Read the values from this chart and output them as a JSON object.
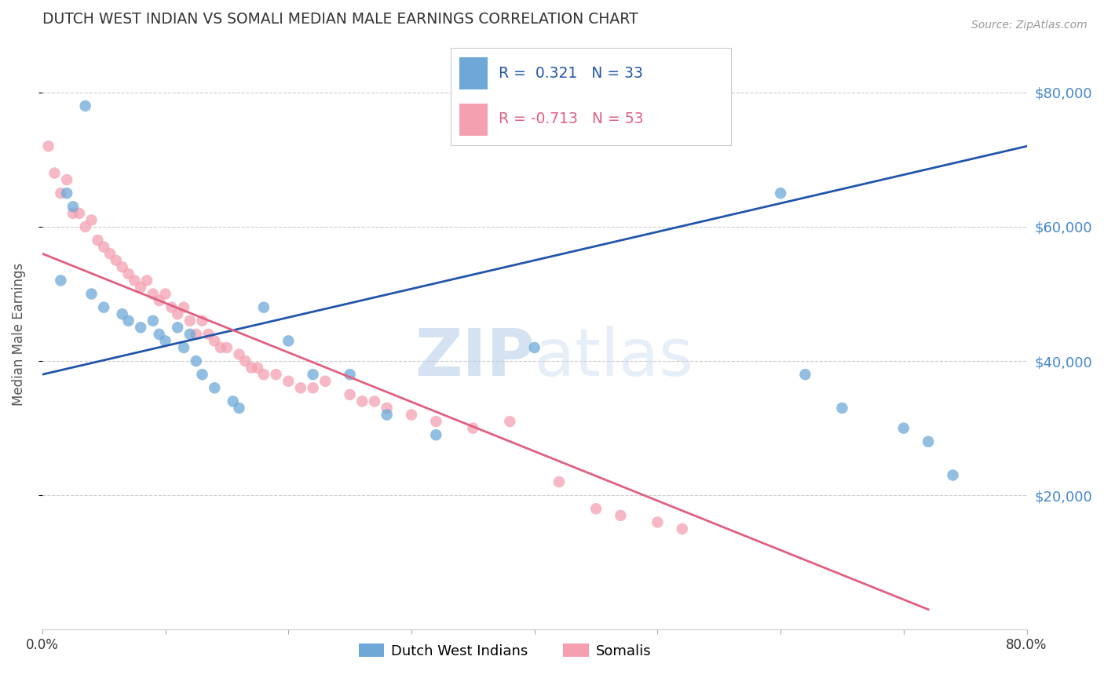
{
  "title": "DUTCH WEST INDIAN VS SOMALI MEDIAN MALE EARNINGS CORRELATION CHART",
  "source": "Source: ZipAtlas.com",
  "ylabel": "Median Male Earnings",
  "ytick_labels": [
    "$20,000",
    "$40,000",
    "$60,000",
    "$80,000"
  ],
  "ytick_values": [
    20000,
    40000,
    60000,
    80000
  ],
  "xmin": 0.0,
  "xmax": 0.8,
  "ymin": 0,
  "ymax": 88000,
  "blue_R": 0.321,
  "blue_N": 33,
  "pink_R": -0.713,
  "pink_N": 53,
  "blue_color": "#6ea8d8",
  "pink_color": "#f4a0b0",
  "blue_line_color": "#2255aa",
  "pink_line_color": "#e06080",
  "legend_label_blue": "Dutch West Indians",
  "legend_label_pink": "Somalis",
  "watermark_zip": "ZIP",
  "watermark_atlas": "atlas",
  "title_color": "#333333",
  "axis_label_color": "#555555",
  "ytick_color": "#4488cc",
  "xtick_color": "#333333",
  "grid_color": "#cccccc",
  "background_color": "#ffffff",
  "blue_scatter_x": [
    0.035,
    0.02,
    0.025,
    0.015,
    0.04,
    0.05,
    0.065,
    0.07,
    0.08,
    0.09,
    0.095,
    0.1,
    0.11,
    0.115,
    0.12,
    0.125,
    0.13,
    0.14,
    0.155,
    0.16,
    0.18,
    0.2,
    0.22,
    0.25,
    0.28,
    0.32,
    0.4,
    0.6,
    0.62,
    0.65,
    0.7,
    0.72,
    0.74
  ],
  "blue_scatter_y": [
    78000,
    65000,
    63000,
    52000,
    50000,
    48000,
    47000,
    46000,
    45000,
    46000,
    44000,
    43000,
    45000,
    42000,
    44000,
    40000,
    38000,
    36000,
    34000,
    33000,
    48000,
    43000,
    38000,
    38000,
    32000,
    29000,
    42000,
    65000,
    38000,
    33000,
    30000,
    28000,
    23000
  ],
  "pink_scatter_x": [
    0.005,
    0.01,
    0.015,
    0.02,
    0.025,
    0.03,
    0.035,
    0.04,
    0.045,
    0.05,
    0.055,
    0.06,
    0.065,
    0.07,
    0.075,
    0.08,
    0.085,
    0.09,
    0.095,
    0.1,
    0.105,
    0.11,
    0.115,
    0.12,
    0.125,
    0.13,
    0.135,
    0.14,
    0.145,
    0.15,
    0.16,
    0.165,
    0.17,
    0.175,
    0.18,
    0.19,
    0.2,
    0.21,
    0.22,
    0.23,
    0.25,
    0.26,
    0.27,
    0.28,
    0.3,
    0.32,
    0.35,
    0.38,
    0.42,
    0.45,
    0.47,
    0.5,
    0.52
  ],
  "pink_scatter_y": [
    72000,
    68000,
    65000,
    67000,
    62000,
    62000,
    60000,
    61000,
    58000,
    57000,
    56000,
    55000,
    54000,
    53000,
    52000,
    51000,
    52000,
    50000,
    49000,
    50000,
    48000,
    47000,
    48000,
    46000,
    44000,
    46000,
    44000,
    43000,
    42000,
    42000,
    41000,
    40000,
    39000,
    39000,
    38000,
    38000,
    37000,
    36000,
    36000,
    37000,
    35000,
    34000,
    34000,
    33000,
    32000,
    31000,
    30000,
    31000,
    22000,
    18000,
    17000,
    16000,
    15000
  ],
  "blue_line_x": [
    0.0,
    0.8
  ],
  "blue_line_y": [
    38000,
    72000
  ],
  "pink_line_x": [
    0.0,
    0.72
  ],
  "pink_line_y": [
    56000,
    3000
  ]
}
